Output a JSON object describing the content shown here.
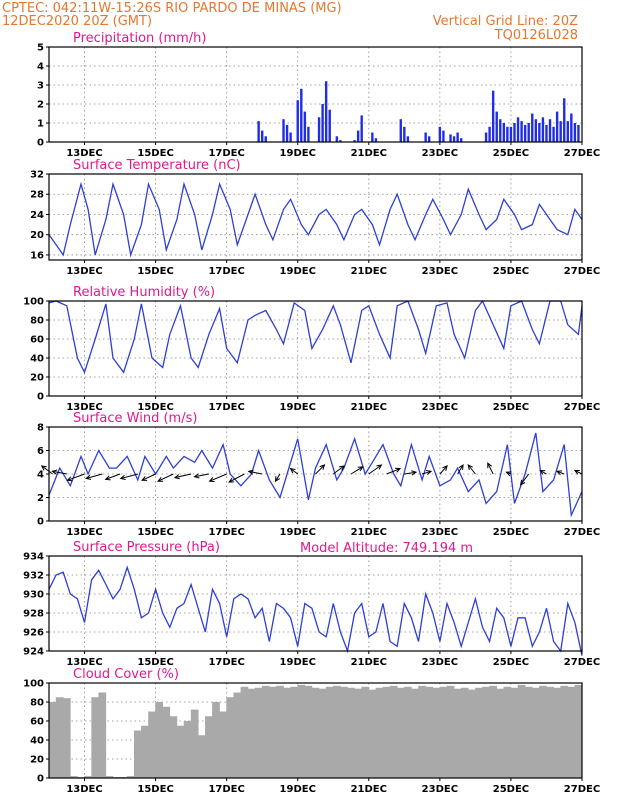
{
  "header": {
    "line1_left": "CPTEC:   042:11W-15:26S  RIO PARDO DE MINAS (MG)",
    "line2_left": "12DEC2020 20Z (GMT)",
    "line2_right": "Vertical Grid Line: 20Z",
    "line3_right": "TQ0126L028"
  },
  "model_altitude_label": "Model Altitude: 749.194 m",
  "colors": {
    "header": "#e8762d",
    "panel_title": "#e0198c",
    "line": "#2d3fd6",
    "bars": "#1f2ee6",
    "cloud": "#a9a9a9",
    "wind_arrow": "#000000"
  },
  "chart_data": [
    {
      "type": "bar",
      "title": "Precipitation (mm/h)",
      "x_tick_labels": [
        "13DEC",
        "15DEC",
        "17DEC",
        "19DEC",
        "21DEC",
        "23DEC",
        "25DEC",
        "27DEC"
      ],
      "ylim": [
        0,
        5
      ],
      "y_ticks": [
        0,
        1,
        2,
        3,
        4,
        5
      ],
      "grid": true,
      "x_days": [
        17.9,
        18.0,
        18.1,
        18.6,
        18.7,
        18.8,
        19.0,
        19.1,
        19.2,
        19.3,
        19.6,
        19.7,
        19.8,
        19.9,
        20.1,
        20.2,
        20.6,
        20.7,
        20.8,
        21.1,
        21.2,
        21.9,
        22.0,
        22.1,
        22.6,
        22.7,
        23.0,
        23.1,
        23.3,
        23.4,
        23.5,
        23.6,
        24.3,
        24.4,
        24.5,
        24.6,
        24.7,
        24.8,
        24.9,
        25.0,
        25.1,
        25.2,
        25.3,
        25.4,
        25.5,
        25.6,
        25.7,
        25.8,
        25.9,
        26.0,
        26.1,
        26.2,
        26.3,
        26.4,
        26.5,
        26.6,
        26.7,
        26.8,
        26.9
      ],
      "values": [
        1.1,
        0.6,
        0.3,
        1.2,
        0.9,
        0.5,
        2.2,
        2.8,
        1.6,
        0.8,
        1.3,
        2.0,
        3.2,
        1.7,
        0.3,
        0.1,
        0.1,
        0.6,
        1.4,
        0.5,
        0.2,
        1.2,
        0.8,
        0.3,
        0.5,
        0.3,
        0.8,
        0.6,
        0.4,
        0.3,
        0.5,
        0.2,
        0.5,
        0.8,
        2.7,
        1.6,
        1.2,
        1.0,
        0.8,
        0.8,
        1.0,
        1.3,
        1.1,
        0.9,
        1.0,
        1.5,
        1.2,
        1.0,
        1.3,
        0.9,
        1.2,
        0.8,
        1.6,
        1.1,
        2.3,
        1.1,
        1.5,
        1.0,
        0.9
      ]
    },
    {
      "type": "line",
      "title": "Surface Temperature (nC)",
      "x_tick_labels": [
        "13DEC",
        "15DEC",
        "17DEC",
        "19DEC",
        "21DEC",
        "23DEC",
        "25DEC",
        "27DEC"
      ],
      "ylim": [
        15,
        32
      ],
      "y_ticks": [
        16,
        20,
        24,
        28,
        32
      ],
      "grid": true,
      "x_days": [
        12.0,
        12.2,
        12.4,
        12.6,
        12.9,
        13.1,
        13.3,
        13.6,
        13.8,
        14.1,
        14.3,
        14.6,
        14.8,
        15.1,
        15.3,
        15.6,
        15.8,
        16.1,
        16.3,
        16.6,
        16.8,
        17.1,
        17.3,
        17.6,
        17.8,
        18.1,
        18.3,
        18.6,
        18.8,
        19.1,
        19.3,
        19.6,
        19.8,
        20.1,
        20.3,
        20.6,
        20.8,
        21.1,
        21.3,
        21.6,
        21.8,
        22.1,
        22.3,
        22.6,
        22.8,
        23.1,
        23.3,
        23.6,
        23.8,
        24.1,
        24.3,
        24.6,
        24.8,
        25.1,
        25.3,
        25.6,
        25.8,
        26.1,
        26.3,
        26.6,
        26.8,
        27.0
      ],
      "values": [
        20,
        18,
        16,
        22,
        30,
        25,
        16,
        23,
        30,
        24,
        16,
        22,
        30,
        25,
        17,
        23,
        30,
        24,
        17,
        24,
        30,
        25,
        18,
        24,
        28,
        22,
        19,
        25,
        27,
        22,
        20,
        24,
        25,
        22,
        19,
        24,
        25,
        22,
        18,
        25,
        28,
        22,
        19,
        24,
        27,
        23,
        20,
        24,
        29,
        24,
        21,
        23,
        27,
        24,
        21,
        22,
        26,
        23,
        21,
        20,
        25,
        23
      ]
    },
    {
      "type": "line",
      "title": "Relative Humidity (%)",
      "x_tick_labels": [
        "13DEC",
        "15DEC",
        "17DEC",
        "19DEC",
        "21DEC",
        "23DEC",
        "25DEC",
        "27DEC"
      ],
      "ylim": [
        0,
        100
      ],
      "y_ticks": [
        0,
        20,
        40,
        60,
        80,
        100
      ],
      "grid": true,
      "x_days": [
        12.0,
        12.2,
        12.5,
        12.8,
        13.0,
        13.3,
        13.6,
        13.8,
        14.1,
        14.4,
        14.6,
        14.9,
        15.2,
        15.4,
        15.7,
        16.0,
        16.2,
        16.5,
        16.8,
        17.0,
        17.3,
        17.6,
        17.8,
        18.1,
        18.4,
        18.6,
        18.9,
        19.2,
        19.4,
        19.7,
        20.0,
        20.2,
        20.5,
        20.8,
        21.0,
        21.3,
        21.6,
        21.8,
        22.1,
        22.4,
        22.6,
        22.9,
        23.2,
        23.4,
        23.7,
        24.0,
        24.2,
        24.5,
        24.8,
        25.0,
        25.3,
        25.6,
        25.8,
        26.1,
        26.4,
        26.6,
        26.9,
        27.0
      ],
      "values": [
        98,
        100,
        95,
        40,
        25,
        60,
        97,
        40,
        25,
        60,
        97,
        40,
        30,
        65,
        95,
        40,
        30,
        65,
        92,
        50,
        35,
        80,
        85,
        90,
        70,
        55,
        98,
        90,
        50,
        70,
        95,
        75,
        35,
        90,
        95,
        65,
        40,
        95,
        100,
        70,
        45,
        95,
        98,
        65,
        40,
        90,
        100,
        75,
        50,
        95,
        100,
        70,
        55,
        100,
        100,
        75,
        65,
        95
      ]
    },
    {
      "type": "line",
      "title": "Surface Wind (m/s)",
      "x_tick_labels": [
        "13DEC",
        "15DEC",
        "17DEC",
        "19DEC",
        "21DEC",
        "23DEC",
        "25DEC",
        "27DEC"
      ],
      "ylim": [
        0,
        8
      ],
      "y_ticks": [
        0,
        2,
        4,
        6,
        8
      ],
      "grid": true,
      "x_days": [
        12.0,
        12.3,
        12.6,
        12.9,
        13.1,
        13.4,
        13.7,
        13.9,
        14.2,
        14.5,
        14.7,
        15.0,
        15.3,
        15.5,
        15.8,
        16.1,
        16.3,
        16.6,
        16.9,
        17.1,
        17.4,
        17.7,
        17.9,
        18.2,
        18.5,
        18.7,
        19.0,
        19.3,
        19.5,
        19.8,
        20.1,
        20.3,
        20.6,
        20.9,
        21.1,
        21.4,
        21.7,
        21.9,
        22.2,
        22.5,
        22.7,
        23.0,
        23.3,
        23.5,
        23.8,
        24.1,
        24.3,
        24.6,
        24.9,
        25.1,
        25.4,
        25.7,
        25.9,
        26.2,
        26.5,
        26.7,
        27.0
      ],
      "values": [
        2.2,
        4.5,
        3.0,
        5.5,
        4.0,
        6.0,
        4.5,
        4.5,
        5.5,
        3.5,
        5.5,
        4.0,
        5.5,
        4.5,
        5.5,
        5.0,
        6.0,
        4.5,
        6.5,
        4.0,
        3.0,
        4.0,
        6.0,
        3.5,
        2.0,
        4.0,
        7.0,
        1.8,
        4.5,
        6.5,
        3.5,
        4.5,
        7.0,
        4.0,
        5.0,
        6.5,
        4.0,
        3.0,
        6.5,
        3.5,
        5.5,
        3.0,
        3.5,
        4.5,
        2.5,
        3.5,
        1.5,
        2.5,
        6.5,
        1.5,
        4.0,
        7.5,
        2.5,
        3.5,
        6.5,
        0.5,
        2.5
      ],
      "arrows": {
        "x_days": [
          12.1,
          12.5,
          13.0,
          13.5,
          14.0,
          14.5,
          15.0,
          15.5,
          16.0,
          16.5,
          17.0,
          17.5,
          18.0,
          18.5,
          19.0,
          19.5,
          20.0,
          20.5,
          21.0,
          21.5,
          22.0,
          22.5,
          23.0,
          23.5,
          24.0,
          24.5,
          25.0,
          25.5,
          26.0,
          26.5,
          27.0
        ],
        "u": [
          -1.2,
          -1.6,
          -1.9,
          -1.8,
          -1.6,
          -1.9,
          -1.5,
          -1.7,
          -1.8,
          -1.6,
          -1.9,
          -1.7,
          -1.5,
          -0.5,
          -0.8,
          1.0,
          1.2,
          1.3,
          1.4,
          1.5,
          1.3,
          1.0,
          0.8,
          0.6,
          -0.8,
          -0.6,
          -0.5,
          -0.9,
          -0.7,
          -0.8,
          -0.8
        ],
        "v": [
          0.9,
          0.3,
          -0.7,
          -0.5,
          -0.6,
          -0.5,
          -0.7,
          -0.8,
          -0.4,
          -0.3,
          -0.8,
          -0.9,
          0.3,
          -0.8,
          0.6,
          1.0,
          0.9,
          0.8,
          1.0,
          0.6,
          0.2,
          0.3,
          0.9,
          1.0,
          1.0,
          1.2,
          0.2,
          -1.2,
          0.4,
          0.3,
          0.4
        ]
      }
    },
    {
      "type": "line",
      "title": "Surface Pressure (hPa)",
      "x_tick_labels": [
        "13DEC",
        "15DEC",
        "17DEC",
        "19DEC",
        "21DEC",
        "23DEC",
        "25DEC",
        "27DEC"
      ],
      "ylim": [
        924,
        934
      ],
      "y_ticks": [
        924,
        926,
        928,
        930,
        932,
        934
      ],
      "grid": true,
      "x_days": [
        12.0,
        12.2,
        12.4,
        12.6,
        12.8,
        13.0,
        13.2,
        13.4,
        13.6,
        13.8,
        14.0,
        14.2,
        14.4,
        14.6,
        14.8,
        15.0,
        15.2,
        15.4,
        15.6,
        15.8,
        16.0,
        16.2,
        16.4,
        16.6,
        16.8,
        17.0,
        17.2,
        17.4,
        17.6,
        17.8,
        18.0,
        18.2,
        18.4,
        18.6,
        18.8,
        19.0,
        19.2,
        19.4,
        19.6,
        19.8,
        20.0,
        20.2,
        20.4,
        20.6,
        20.8,
        21.0,
        21.2,
        21.4,
        21.6,
        21.8,
        22.0,
        22.2,
        22.4,
        22.6,
        22.8,
        23.0,
        23.2,
        23.4,
        23.6,
        23.8,
        24.0,
        24.2,
        24.4,
        24.6,
        24.8,
        25.0,
        25.2,
        25.4,
        25.6,
        25.8,
        26.0,
        26.2,
        26.4,
        26.6,
        26.8,
        27.0
      ],
      "values": [
        930.5,
        932.0,
        932.3,
        930.0,
        929.5,
        927.0,
        931.5,
        932.5,
        931.0,
        929.5,
        930.5,
        932.8,
        930.5,
        927.5,
        928.0,
        930.5,
        928.0,
        926.5,
        928.5,
        929.0,
        931.0,
        928.5,
        926.0,
        930.5,
        929.0,
        925.5,
        929.5,
        930.0,
        929.5,
        927.5,
        928.5,
        925.0,
        929.0,
        928.5,
        927.5,
        924.5,
        929.0,
        928.5,
        926.0,
        925.5,
        929.0,
        926.0,
        924.0,
        928.0,
        929.0,
        925.5,
        926.0,
        929.0,
        925.0,
        924.5,
        929.0,
        927.5,
        925.0,
        930.0,
        928.0,
        925.0,
        929.0,
        927.0,
        924.5,
        927.0,
        929.5,
        926.5,
        925.0,
        928.5,
        927.5,
        924.5,
        927.5,
        927.5,
        924.5,
        926.0,
        928.5,
        925.0,
        924.0,
        929.0,
        927.0,
        923.5
      ]
    },
    {
      "type": "bar",
      "title": "Cloud Cover (%)",
      "x_tick_labels": [
        "13DEC",
        "15DEC",
        "17DEC",
        "19DEC",
        "21DEC",
        "23DEC",
        "25DEC",
        "27DEC"
      ],
      "ylim": [
        0,
        100
      ],
      "y_ticks": [
        0,
        20,
        40,
        60,
        80,
        100
      ],
      "grid": true,
      "x_days": [
        12.1,
        12.3,
        12.5,
        12.7,
        12.9,
        13.1,
        13.3,
        13.5,
        13.7,
        13.9,
        14.1,
        14.3,
        14.5,
        14.7,
        14.9,
        15.1,
        15.3,
        15.5,
        15.7,
        15.9,
        16.1,
        16.3,
        16.5,
        16.7,
        16.9,
        17.1,
        17.3,
        17.5,
        17.7,
        17.9,
        18.1,
        18.3,
        18.5,
        18.7,
        18.9,
        19.1,
        19.3,
        19.5,
        19.7,
        19.9,
        20.1,
        20.3,
        20.5,
        20.7,
        20.9,
        21.1,
        21.3,
        21.5,
        21.7,
        21.9,
        22.1,
        22.3,
        22.5,
        22.7,
        22.9,
        23.1,
        23.3,
        23.5,
        23.7,
        23.9,
        24.1,
        24.3,
        24.5,
        24.7,
        24.9,
        25.1,
        25.3,
        25.5,
        25.7,
        25.9,
        26.1,
        26.3,
        26.5,
        26.7,
        26.9
      ],
      "values": [
        80,
        85,
        84,
        2,
        1,
        2,
        85,
        90,
        2,
        1,
        1,
        2,
        50,
        55,
        70,
        80,
        75,
        65,
        55,
        60,
        72,
        45,
        65,
        80,
        70,
        85,
        90,
        96,
        94,
        95,
        97,
        96,
        97,
        95,
        96,
        98,
        97,
        95,
        94,
        96,
        97,
        96,
        95,
        94,
        96,
        93,
        95,
        96,
        97,
        95,
        96,
        94,
        97,
        96,
        95,
        96,
        97,
        94,
        95,
        93,
        95,
        96,
        97,
        94,
        96,
        95,
        98,
        96,
        95,
        97,
        96,
        95,
        97,
        96,
        98
      ]
    }
  ]
}
